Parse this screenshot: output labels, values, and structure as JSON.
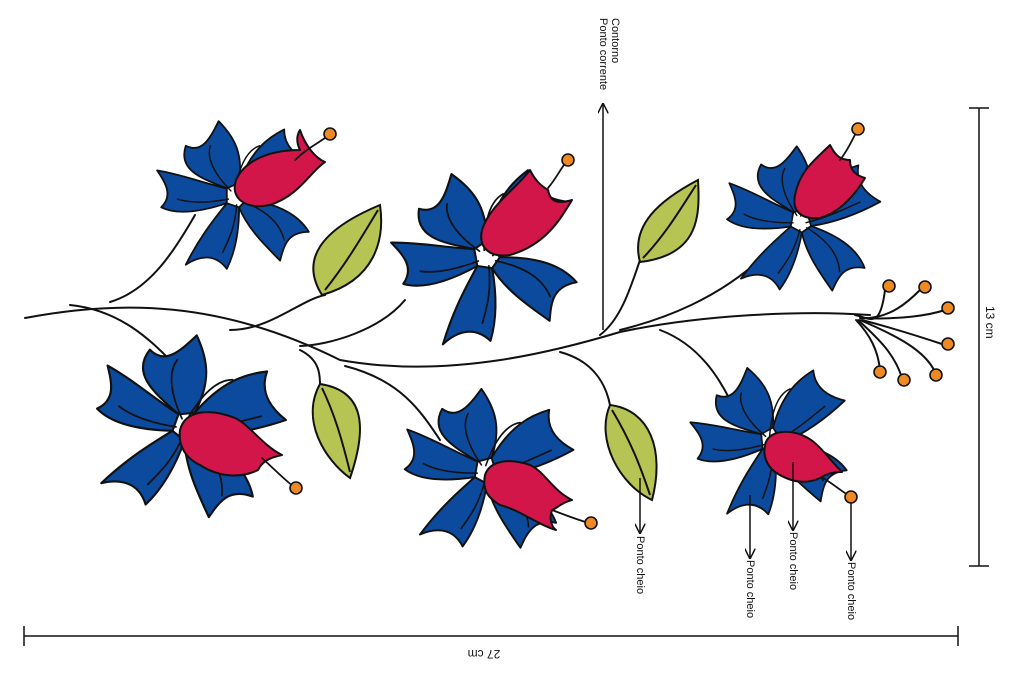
{
  "labels": {
    "contorno": "Contorno",
    "ponto_corrente": "Ponto corrente",
    "ponto_cheio_1": "Ponto cheio",
    "ponto_cheio_2": "Ponto cheio",
    "ponto_cheio_3": "Ponto cheio",
    "ponto_cheio_4": "Ponto cheio"
  },
  "dimensions": {
    "width": "27 cm",
    "height": "13 cm"
  },
  "colors": {
    "petal": "#0b4a9c",
    "bud": "#d3164a",
    "leaf": "#b5c452",
    "berry": "#ef8a22",
    "outline": "#111111"
  }
}
